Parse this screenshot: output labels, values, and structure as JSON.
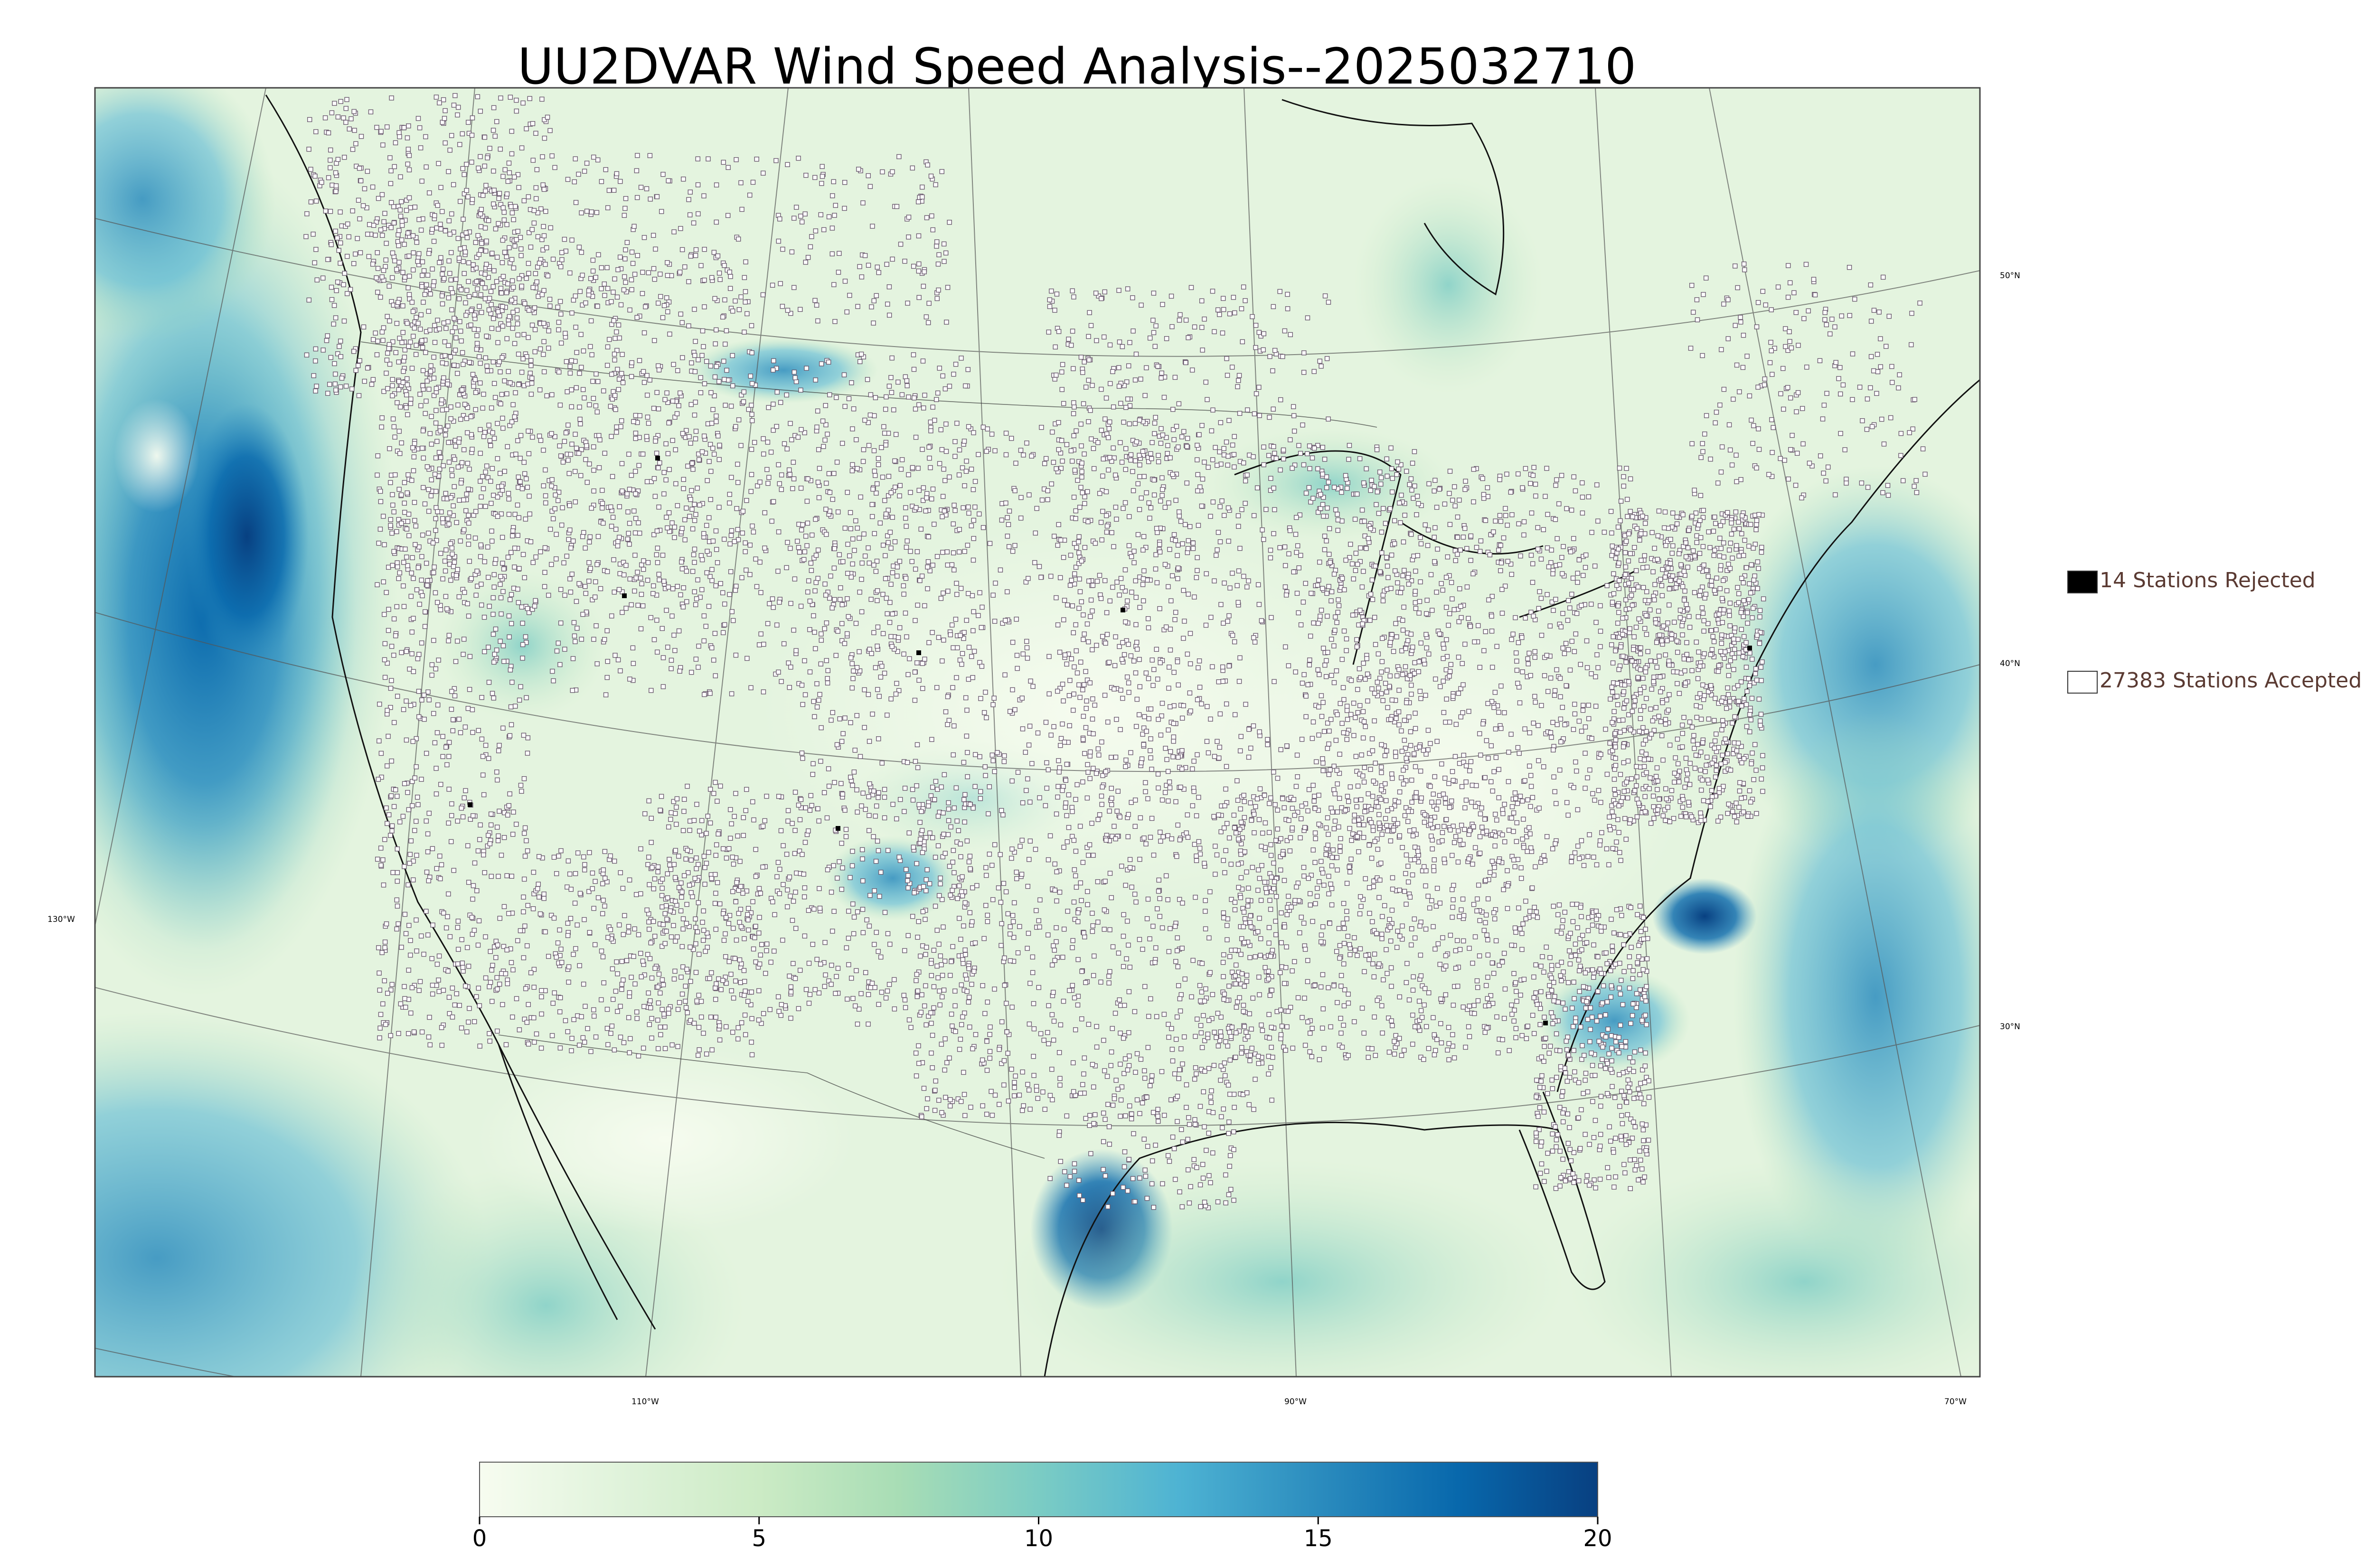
{
  "title": "UU2DVAR Wind Speed Analysis--2025032710",
  "legend": {
    "rejected_label": "14 Stations Rejected",
    "accepted_label": "27383 Stations Accepted",
    "rejected_marker_color": "#000000",
    "accepted_marker_color": "#ffffff"
  },
  "graticule": {
    "longitude_labels": [
      "130°W",
      "110°W",
      "90°W",
      "70°W"
    ],
    "latitude_labels": [
      "50°N",
      "40°N",
      "30°N"
    ]
  },
  "colorbar": {
    "min": 0,
    "max": 20,
    "tick_labels": [
      "0",
      "5",
      "10",
      "15",
      "20"
    ],
    "colors": [
      "#f7fcf0",
      "#e0f3db",
      "#ccebc5",
      "#a8ddb5",
      "#7bccc4",
      "#4eb3d3",
      "#2b8cbe",
      "#0868ac",
      "#084081"
    ]
  },
  "chart_data": {
    "type": "heatmap",
    "title": "UU2DVAR Wind Speed Analysis--2025032710",
    "colorbar_range": [
      0,
      20
    ],
    "colorbar_ticks": [
      0,
      5,
      10,
      15,
      20
    ],
    "legend": [
      {
        "name": "14 Stations Rejected",
        "count": 14
      },
      {
        "name": "27383 Stations Accepted",
        "count": 27383
      }
    ],
    "legend_placement": "right"
  }
}
